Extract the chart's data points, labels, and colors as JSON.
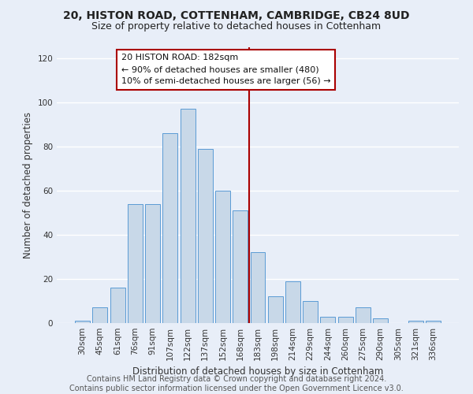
{
  "title": "20, HISTON ROAD, COTTENHAM, CAMBRIDGE, CB24 8UD",
  "subtitle": "Size of property relative to detached houses in Cottenham",
  "xlabel": "Distribution of detached houses by size in Cottenham",
  "ylabel": "Number of detached properties",
  "categories": [
    "30sqm",
    "45sqm",
    "61sqm",
    "76sqm",
    "91sqm",
    "107sqm",
    "122sqm",
    "137sqm",
    "152sqm",
    "168sqm",
    "183sqm",
    "198sqm",
    "214sqm",
    "229sqm",
    "244sqm",
    "260sqm",
    "275sqm",
    "290sqm",
    "305sqm",
    "321sqm",
    "336sqm"
  ],
  "values": [
    1,
    7,
    16,
    54,
    54,
    86,
    97,
    79,
    60,
    51,
    32,
    12,
    19,
    10,
    3,
    3,
    7,
    2,
    0,
    1,
    1
  ],
  "bar_color": "#c8d8e8",
  "bar_edge_color": "#5b9bd5",
  "background_color": "#e8eef8",
  "grid_color": "#ffffff",
  "vline_color": "#aa0000",
  "annotation_box_color": "#aa0000",
  "annotation_lines": [
    "20 HISTON ROAD: 182sqm",
    "← 90% of detached houses are smaller (480)",
    "10% of semi-detached houses are larger (56) →"
  ],
  "ylim": [
    0,
    125
  ],
  "yticks": [
    0,
    20,
    40,
    60,
    80,
    100,
    120
  ],
  "footer": "Contains HM Land Registry data © Crown copyright and database right 2024.\nContains public sector information licensed under the Open Government Licence v3.0.",
  "title_fontsize": 10,
  "subtitle_fontsize": 9,
  "xlabel_fontsize": 8.5,
  "ylabel_fontsize": 8.5,
  "tick_fontsize": 7.5,
  "annotation_fontsize": 8,
  "footer_fontsize": 7
}
